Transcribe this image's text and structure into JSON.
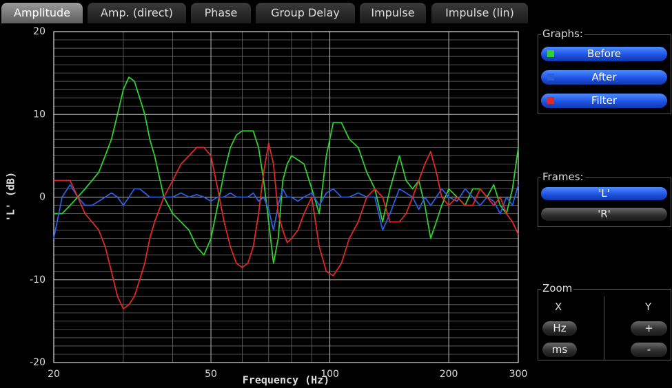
{
  "tabs": [
    "Amplitude",
    "Amp. (direct)",
    "Phase",
    "Group Delay",
    "Impulse",
    "Impulse (lin)"
  ],
  "active_tab": 0,
  "sidebar": {
    "graphs_label": "Graphs:",
    "frames_label": "Frames:",
    "frames": [
      "'L'",
      "'R'"
    ],
    "active_frame": 0,
    "zoom_label": "Zoom",
    "zoom_x": "X",
    "zoom_y": "Y",
    "zoom_x_buttons": [
      "Hz",
      "ms"
    ],
    "zoom_y_buttons": [
      "+",
      "-"
    ]
  },
  "chart_data": {
    "type": "line",
    "xlabel": "Frequency (Hz)",
    "ylabel": "'L' (dB)",
    "xscale": "log",
    "grid": true,
    "minor_grid": true,
    "xlim": [
      20,
      300
    ],
    "ylim": [
      -20,
      20
    ],
    "xticks": [
      20,
      50,
      100,
      200,
      300
    ],
    "yticks": [
      -20,
      -10,
      0,
      10,
      20
    ],
    "x": [
      20,
      21,
      22,
      23,
      24,
      25,
      26,
      27,
      28,
      29,
      30,
      31,
      32,
      33,
      34,
      35,
      36,
      38,
      40,
      42,
      44,
      46,
      48,
      50,
      52,
      54,
      56,
      58,
      60,
      62,
      64,
      66,
      68,
      70,
      72,
      74,
      76,
      78,
      80,
      83,
      86,
      90,
      94,
      98,
      102,
      107,
      112,
      118,
      124,
      130,
      136,
      142,
      150,
      156,
      162,
      168,
      174,
      180,
      186,
      192,
      200,
      210,
      220,
      230,
      240,
      250,
      260,
      270,
      280,
      290,
      300
    ],
    "series": [
      {
        "name": "Before",
        "color": "#2fd02f",
        "values": [
          -2,
          -2,
          -1,
          0,
          1,
          2,
          3,
          5,
          7,
          10,
          13,
          14.5,
          14,
          12,
          10,
          7,
          5,
          0,
          -2,
          -3,
          -4,
          -6,
          -7,
          -5,
          -1,
          3,
          6,
          7.5,
          8,
          8,
          8,
          6,
          2,
          -3,
          -8,
          -5,
          2,
          4,
          5,
          4.5,
          4,
          1,
          -2,
          5,
          9,
          9,
          7,
          6,
          3,
          1,
          -3,
          1,
          5,
          2,
          1,
          2,
          -1,
          -5,
          -3,
          -1,
          1,
          0,
          -1,
          1,
          1,
          0,
          1.5,
          -1,
          -2,
          1,
          6
        ]
      },
      {
        "name": "After",
        "color": "#2a5fe0",
        "values": [
          -5,
          0,
          1.5,
          0,
          -1,
          -1,
          -0.5,
          0,
          0.5,
          0,
          -1,
          0,
          1,
          1,
          0.5,
          0,
          0,
          0,
          0,
          0.5,
          0,
          0.3,
          0,
          -0.5,
          0,
          0,
          0.5,
          0,
          0,
          0,
          0.5,
          -0.5,
          0,
          -1.5,
          -4,
          -1,
          1,
          0,
          0,
          -0.5,
          0,
          0.5,
          -1,
          0.5,
          1,
          0,
          0,
          0.5,
          0,
          0,
          -4,
          -2,
          1,
          0.5,
          0,
          -1.5,
          0,
          -1,
          0,
          1,
          0,
          -0.5,
          1,
          0,
          -1,
          0,
          -0.5,
          -2,
          0,
          -1,
          1.5
        ]
      },
      {
        "name": "Filter",
        "color": "#e02828",
        "values": [
          2,
          2,
          2,
          0,
          -2,
          -3,
          -4,
          -6,
          -9,
          -12,
          -13.5,
          -13,
          -12,
          -10,
          -8,
          -5,
          -3,
          0,
          2,
          4,
          5,
          6,
          6,
          5,
          1,
          -3,
          -6,
          -8,
          -8.5,
          -8,
          -6,
          -2,
          3,
          6.5,
          4,
          -2,
          -4,
          -5.5,
          -5,
          -4,
          -2,
          0,
          -6,
          -9,
          -9.5,
          -8,
          -5,
          -3,
          0,
          1,
          0,
          -3,
          -3,
          -2,
          0,
          2,
          4,
          5.5,
          3,
          0,
          -1,
          0,
          -1,
          -1,
          1,
          0,
          -1,
          0,
          -2,
          -3,
          -4.5
        ]
      }
    ]
  }
}
